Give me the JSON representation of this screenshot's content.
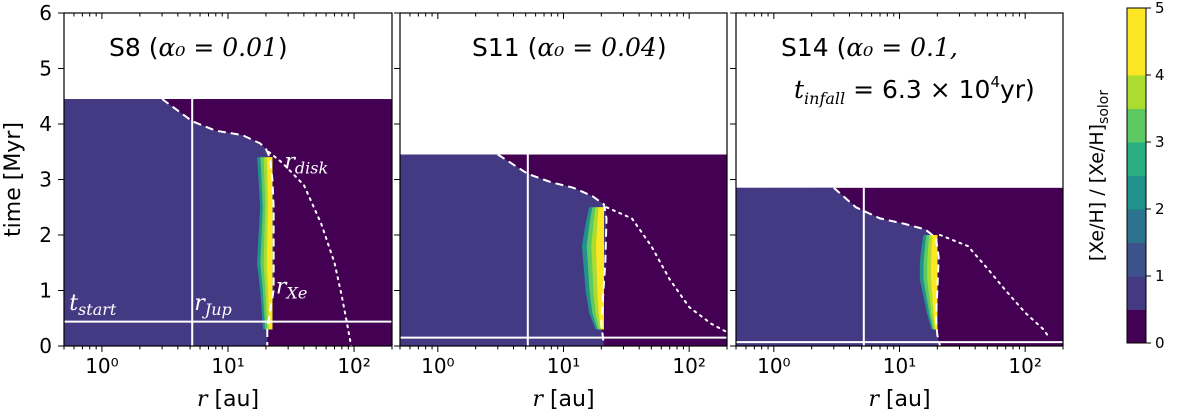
{
  "chart_data": [
    {
      "type": "heatmap",
      "panel": "left",
      "title": "S8 (α₀ = 0.01)",
      "title_main": "S8 (",
      "title_math": "α₀ = 0.01",
      "title_close": ")",
      "xlabel_var": "r",
      "xlabel_unit": " [au]",
      "ylabel": "time [Myr]",
      "xscale": "log",
      "xlim": [
        0.5,
        200
      ],
      "ylim": [
        0,
        6
      ],
      "yticks": [
        0,
        1,
        2,
        3,
        4,
        5,
        6
      ],
      "xticks": [
        1,
        10,
        100
      ],
      "xtick_labels": [
        "10⁰",
        "10¹",
        "10²"
      ],
      "t_end": 4.45,
      "t_start": 0.44,
      "r_jup": 5.2,
      "dashed_curve": [
        [
          3.0,
          4.45
        ],
        [
          5.2,
          4.05
        ],
        [
          8,
          3.88
        ],
        [
          13,
          3.8
        ],
        [
          18,
          3.65
        ],
        [
          20,
          3.55
        ],
        [
          21.5,
          3.4
        ],
        [
          22.5,
          3.0
        ],
        [
          23,
          2.5
        ],
        [
          23,
          1.0
        ],
        [
          21.5,
          0.6
        ],
        [
          20.5,
          0.3
        ],
        [
          20.5,
          0.0
        ]
      ],
      "dotted_curve": [
        [
          21,
          3.5
        ],
        [
          27,
          3.3
        ],
        [
          40,
          2.9
        ],
        [
          55,
          2.2
        ],
        [
          70,
          1.5
        ],
        [
          80,
          0.9
        ],
        [
          88,
          0.4
        ],
        [
          95,
          0.0
        ]
      ],
      "xe_band": {
        "r_inner": [
          17,
          17.5,
          18,
          17.5,
          17,
          18,
          19
        ],
        "t_levels": [
          3.4,
          3.0,
          2.5,
          2.0,
          1.5,
          1.0,
          0.3
        ],
        "r_outer": 22.5
      },
      "annotations": [
        {
          "label_var": "r",
          "label_sub": "disk",
          "x": 28,
          "y": 3.2
        },
        {
          "label_var": "r",
          "label_sub": "Jup",
          "x": 5.4,
          "y": 0.65
        },
        {
          "label_var": "r",
          "label_sub": "Xe",
          "x": 24,
          "y": 0.95
        },
        {
          "label_var": "t",
          "label_sub": "start",
          "x": 0.55,
          "y": 0.65
        }
      ]
    },
    {
      "type": "heatmap",
      "panel": "middle",
      "title": "S11 (α₀ = 0.04)",
      "title_main": "S11 (",
      "title_math": "α₀ = 0.04",
      "title_close": ")",
      "xlabel_var": "r",
      "xlabel_unit": " [au]",
      "xscale": "log",
      "xlim": [
        0.5,
        200
      ],
      "ylim": [
        0,
        6
      ],
      "xticks": [
        1,
        10,
        100
      ],
      "xtick_labels": [
        "10⁰",
        "10¹",
        "10²"
      ],
      "t_end": 3.45,
      "t_start": 0.15,
      "r_jup": 5.2,
      "dashed_curve": [
        [
          3.0,
          3.45
        ],
        [
          5.2,
          3.1
        ],
        [
          8,
          2.95
        ],
        [
          12,
          2.85
        ],
        [
          17,
          2.7
        ],
        [
          21,
          2.55
        ],
        [
          22,
          2.3
        ],
        [
          21.5,
          1.5
        ],
        [
          20.5,
          0.8
        ],
        [
          20,
          0.4
        ],
        [
          21,
          0.0
        ]
      ],
      "dotted_curve": [
        [
          22,
          2.5
        ],
        [
          35,
          2.3
        ],
        [
          50,
          1.8
        ],
        [
          70,
          1.2
        ],
        [
          100,
          0.7
        ],
        [
          150,
          0.4
        ],
        [
          200,
          0.25
        ]
      ],
      "xe_band": {
        "r_inner": [
          16,
          15,
          14,
          14.5,
          15,
          16,
          18
        ],
        "t_levels": [
          2.5,
          2.2,
          1.8,
          1.4,
          1.0,
          0.6,
          0.3
        ],
        "r_outer": 21
      }
    },
    {
      "type": "heatmap",
      "panel": "right",
      "title": "S14 (α₀ = 0.1, t_infall = 6.3 × 10⁴ yr)",
      "title_main": "S14 (",
      "title_math": "α₀ = 0.1,",
      "title_line2_var": "t",
      "title_line2_sub": "infall",
      "title_line2_rest": " = 6.3 × 10",
      "title_line2_exp": "4",
      "title_line2_unit": "yr)",
      "xlabel_var": "r",
      "xlabel_unit": " [au]",
      "xscale": "log",
      "xlim": [
        0.5,
        200
      ],
      "ylim": [
        0,
        6
      ],
      "xticks": [
        1,
        10,
        100
      ],
      "xtick_labels": [
        "10⁰",
        "10¹",
        "10²"
      ],
      "t_end": 2.85,
      "t_start": 0.07,
      "r_jup": 5.2,
      "dashed_curve": [
        [
          3.0,
          2.85
        ],
        [
          4.5,
          2.5
        ],
        [
          7,
          2.3
        ],
        [
          11,
          2.2
        ],
        [
          16,
          2.1
        ],
        [
          19.5,
          1.95
        ],
        [
          20.5,
          1.6
        ],
        [
          20,
          1.0
        ],
        [
          19.5,
          0.5
        ],
        [
          20,
          0.2
        ],
        [
          21,
          0.0
        ]
      ],
      "dotted_curve": [
        [
          21,
          2.0
        ],
        [
          35,
          1.8
        ],
        [
          50,
          1.4
        ],
        [
          70,
          1.0
        ],
        [
          100,
          0.6
        ],
        [
          140,
          0.3
        ],
        [
          150,
          0.2
        ]
      ],
      "xe_band": {
        "r_inner": [
          15.5,
          15,
          14.5,
          14.5,
          15.5,
          16.5,
          18
        ],
        "t_levels": [
          2.0,
          1.8,
          1.5,
          1.2,
          0.9,
          0.6,
          0.3
        ],
        "r_outer": 20
      }
    }
  ],
  "colorbar": {
    "label_a": "[Xe/H] / [Xe/H]",
    "label_sub": "solor",
    "min": 0,
    "max": 5,
    "ticks": [
      "0",
      "1",
      "2",
      "3",
      "4",
      "5"
    ],
    "levels": [
      "#440154",
      "#443983",
      "#3b528b",
      "#2c728e",
      "#21918c",
      "#28ae80",
      "#5ec962",
      "#addc30",
      "#fde725",
      "#fde725"
    ]
  },
  "colors": {
    "outer": "#440154",
    "inner": "#443983",
    "band": [
      "#21918c",
      "#5ec962",
      "#addc30",
      "#fde725"
    ]
  }
}
